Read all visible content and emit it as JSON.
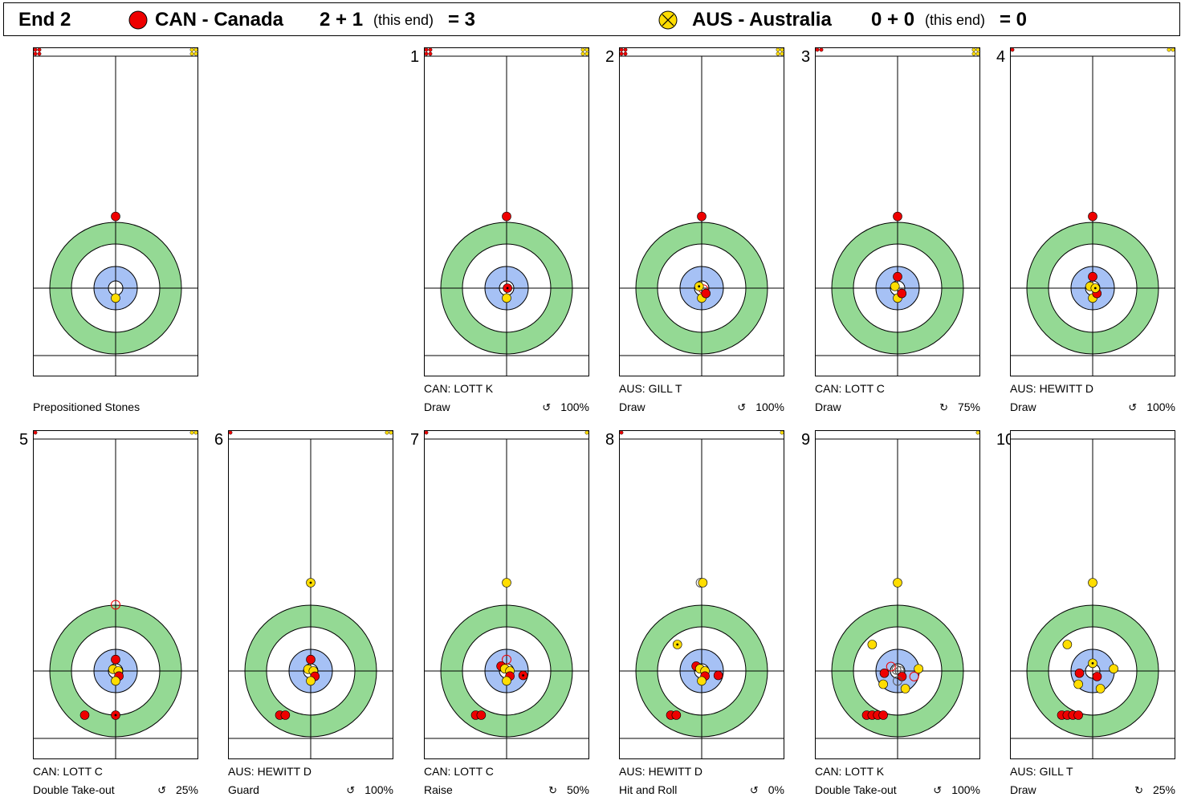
{
  "header": {
    "end_label": "End 2",
    "team1": {
      "name": "CAN - Canada",
      "score_a": "2 + 1",
      "this_end": "(this end)",
      "total": "= 3",
      "color": "#ee0000"
    },
    "team2": {
      "name": "AUS - Australia",
      "score_a": "0 + 0",
      "this_end": "(this end)",
      "total": "= 0",
      "color": "#ffdd00"
    }
  },
  "colors": {
    "red": "#ee0000",
    "yellow": "#ffdd00",
    "house_outer": "#94d994",
    "house_inner": "#a6c1f5"
  },
  "panels": [
    {
      "number": "",
      "player": "",
      "shot": "Prepositioned Stones",
      "pct": "",
      "rotation_icon": "",
      "stones": [
        [
          "r",
          0,
          -3.25
        ],
        [
          "y",
          0,
          0.45
        ]
      ]
    },
    {
      "number": "1",
      "player": "CAN: LOTT K",
      "shot": "Draw",
      "pct": "100%",
      "rotation_icon": "counterclockwise-icon",
      "stones": [
        [
          "r",
          0,
          -3.25
        ],
        [
          "y",
          0,
          0.45
        ],
        [
          "rd",
          0.04,
          0.0
        ]
      ]
    },
    {
      "number": "2",
      "player": "AUS: GILL T",
      "shot": "Draw",
      "pct": "100%",
      "rotation_icon": "counterclockwise-icon",
      "stones": [
        [
          "r",
          0,
          -3.25
        ],
        [
          "y",
          0,
          0.45
        ],
        [
          "ro",
          0.08,
          0.05
        ],
        [
          "r",
          0.19,
          0.24
        ],
        [
          "yd",
          -0.12,
          -0.08
        ]
      ]
    },
    {
      "number": "3",
      "player": "CAN: LOTT C",
      "shot": "Draw",
      "pct": "75%",
      "rotation_icon": "clockwise-icon",
      "stones": [
        [
          "r",
          0,
          -3.25
        ],
        [
          "y",
          0,
          0.45
        ],
        [
          "r",
          0.19,
          0.24
        ],
        [
          "y",
          -0.12,
          -0.08
        ],
        [
          "r",
          0.0,
          -0.52
        ]
      ]
    },
    {
      "number": "4",
      "player": "AUS: HEWITT D",
      "shot": "Draw",
      "pct": "100%",
      "rotation_icon": "counterclockwise-icon",
      "stones": [
        [
          "r",
          0,
          -3.25
        ],
        [
          "y",
          0,
          0.45
        ],
        [
          "r",
          0.19,
          0.24
        ],
        [
          "y",
          -0.12,
          -0.08
        ],
        [
          "r",
          0.0,
          -0.52
        ],
        [
          "yd",
          0.12,
          0.0
        ]
      ]
    },
    {
      "number": "5",
      "player": "CAN: LOTT C",
      "shot": "Double Take-out",
      "pct": "25%",
      "rotation_icon": "counterclockwise-icon",
      "stones": [
        [
          "ro",
          0,
          -3.0
        ],
        [
          "r",
          0,
          -0.52
        ],
        [
          "y",
          -0.12,
          -0.08
        ],
        [
          "y",
          0.12,
          0.0
        ],
        [
          "r",
          0.15,
          0.23
        ],
        [
          "y",
          0,
          0.45
        ],
        [
          "r",
          -1.4,
          2.0
        ],
        [
          "rd",
          0,
          2.0
        ]
      ]
    },
    {
      "number": "6",
      "player": "AUS: HEWITT D",
      "shot": "Guard",
      "pct": "100%",
      "rotation_icon": "counterclockwise-icon",
      "stones": [
        [
          "yd",
          0,
          -4.0
        ],
        [
          "r",
          0,
          -0.52
        ],
        [
          "y",
          -0.12,
          -0.08
        ],
        [
          "y",
          0.12,
          0.0
        ],
        [
          "r",
          0.19,
          0.24
        ],
        [
          "y",
          0,
          0.45
        ],
        [
          "r",
          -1.4,
          2.0
        ],
        [
          "r",
          -1.15,
          2.0
        ]
      ]
    },
    {
      "number": "7",
      "player": "CAN: LOTT C",
      "shot": "Raise",
      "pct": "50%",
      "rotation_icon": "clockwise-icon",
      "stones": [
        [
          "y",
          0,
          -4.0
        ],
        [
          "ro",
          0,
          -0.52
        ],
        [
          "r",
          -0.25,
          -0.22
        ],
        [
          "y",
          -0.08,
          -0.1
        ],
        [
          "y",
          0.15,
          0.0
        ],
        [
          "r",
          0.15,
          0.23
        ],
        [
          "y",
          0,
          0.45
        ],
        [
          "rd",
          0.75,
          0.2
        ],
        [
          "r",
          -1.4,
          2.0
        ],
        [
          "r",
          -1.15,
          2.0
        ]
      ]
    },
    {
      "number": "8",
      "player": "AUS: HEWITT D",
      "shot": "Hit and Roll",
      "pct": "0%",
      "rotation_icon": "counterclockwise-icon",
      "stones": [
        [
          "go",
          -0.05,
          -4.0
        ],
        [
          "y",
          0.05,
          -4.0
        ],
        [
          "yd",
          -1.1,
          -1.2
        ],
        [
          "r",
          -0.25,
          -0.22
        ],
        [
          "y",
          -0.08,
          -0.1
        ],
        [
          "y",
          0.15,
          0.0
        ],
        [
          "r",
          0.15,
          0.23
        ],
        [
          "y",
          0,
          0.45
        ],
        [
          "r",
          0.75,
          0.2
        ],
        [
          "r",
          -1.4,
          2.0
        ],
        [
          "r",
          -1.15,
          2.0
        ]
      ]
    },
    {
      "number": "9",
      "player": "CAN: LOTT K",
      "shot": "Double Take-out",
      "pct": "100%",
      "rotation_icon": "counterclockwise-icon",
      "stones": [
        [
          "y",
          0,
          -4.0
        ],
        [
          "y",
          -1.15,
          -1.2
        ],
        [
          "go",
          -0.05,
          -0.05
        ],
        [
          "go",
          0.1,
          0.0
        ],
        [
          "ro",
          -0.3,
          -0.2
        ],
        [
          "r",
          -0.6,
          0.1
        ],
        [
          "r",
          0.2,
          0.25
        ],
        [
          "go",
          0.0,
          0.45
        ],
        [
          "y",
          0.95,
          -0.1
        ],
        [
          "ro",
          0.75,
          0.25
        ],
        [
          "y",
          -0.65,
          0.6
        ],
        [
          "y",
          0.35,
          0.8
        ],
        [
          "r",
          -1.4,
          2.0
        ],
        [
          "r",
          -1.15,
          2.0
        ],
        [
          "r",
          -0.9,
          2.0
        ],
        [
          "r",
          -0.65,
          2.0
        ]
      ]
    },
    {
      "number": "10",
      "player": "AUS: GILL T",
      "shot": "Draw",
      "pct": "25%",
      "rotation_icon": "clockwise-icon",
      "stones": [
        [
          "y",
          0,
          -4.0
        ],
        [
          "y",
          -1.15,
          -1.2
        ],
        [
          "yd",
          0,
          -0.35
        ],
        [
          "y",
          0.95,
          -0.1
        ],
        [
          "r",
          -0.6,
          0.1
        ],
        [
          "r",
          0.2,
          0.25
        ],
        [
          "y",
          -0.65,
          0.6
        ],
        [
          "y",
          0.35,
          0.8
        ],
        [
          "r",
          -1.4,
          2.0
        ],
        [
          "r",
          -1.15,
          2.0
        ],
        [
          "r",
          -0.9,
          2.0
        ],
        [
          "r",
          -0.65,
          2.0
        ]
      ]
    }
  ]
}
